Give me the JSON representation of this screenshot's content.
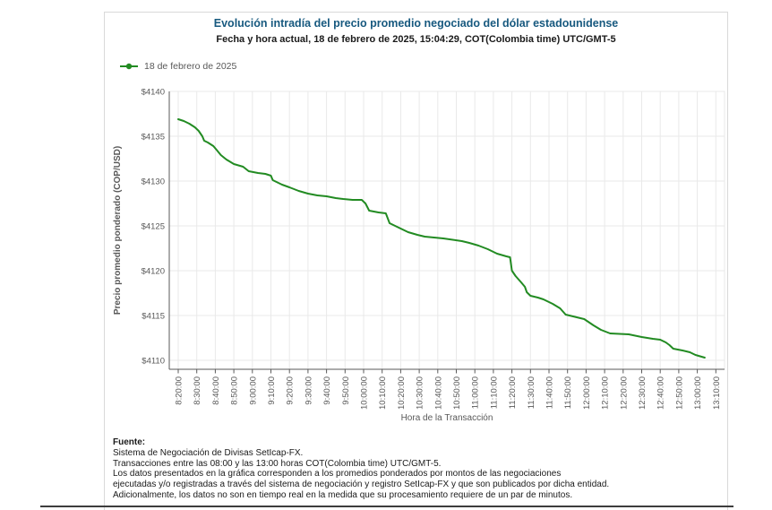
{
  "header": {
    "title": "Evolución intradía del precio promedio negociado del dólar estadounidense",
    "subtitle": "Fecha y hora actual, 18 de febrero de 2025, 15:04:29, COT(Colombia time) UTC/GMT-5"
  },
  "legend": {
    "label": "18 de febrero de 2025"
  },
  "chart_data": {
    "type": "line",
    "title": "Evolución intradía del precio promedio negociado del dólar estadounidense",
    "xlabel": "Hora de la Transacción",
    "ylabel": "Precio promedio ponderado (COP/USD)",
    "ylim": [
      4109,
      4140
    ],
    "grid": true,
    "legend_position": "top-left",
    "x_ticks": [
      "8:20:00",
      "8:30:00",
      "8:40:00",
      "8:50:00",
      "9:00:00",
      "9:10:00",
      "9:20:00",
      "9:30:00",
      "9:40:00",
      "9:50:00",
      "10:00:00",
      "10:10:00",
      "10:20:00",
      "10:30:00",
      "10:40:00",
      "10:50:00",
      "11:00:00",
      "11:10:00",
      "11:20:00",
      "11:30:00",
      "11:40:00",
      "11:50:00",
      "12:00:00",
      "12:10:00",
      "12:20:00",
      "12:30:00",
      "12:40:00",
      "12:50:00",
      "13:00:00",
      "13:10:00"
    ],
    "y_ticks": [
      {
        "value": 4110,
        "label": "$4110"
      },
      {
        "value": 4115,
        "label": "$4115"
      },
      {
        "value": 4120,
        "label": "$4120"
      },
      {
        "value": 4125,
        "label": "$4125"
      },
      {
        "value": 4130,
        "label": "$4130"
      },
      {
        "value": 4135,
        "label": "$4135"
      },
      {
        "value": 4140,
        "label": "$4140"
      }
    ],
    "x_start_time": "8:20:00",
    "x_minutes_per_tick": 10,
    "series": [
      {
        "name": "18 de febrero de 2025",
        "color": "#228B22",
        "points_format": "[minutes_after_8:20, COP_per_USD]",
        "points": [
          [
            0,
            4136.9
          ],
          [
            3,
            4136.7
          ],
          [
            6,
            4136.4
          ],
          [
            9,
            4136.0
          ],
          [
            11,
            4135.6
          ],
          [
            13,
            4135.0
          ],
          [
            14,
            4134.5
          ],
          [
            16,
            4134.3
          ],
          [
            19,
            4133.9
          ],
          [
            21,
            4133.4
          ],
          [
            23,
            4132.9
          ],
          [
            26,
            4132.4
          ],
          [
            30,
            4131.9
          ],
          [
            35,
            4131.6
          ],
          [
            38,
            4131.1
          ],
          [
            43,
            4130.9
          ],
          [
            47,
            4130.8
          ],
          [
            50,
            4130.6
          ],
          [
            51,
            4130.1
          ],
          [
            56,
            4129.6
          ],
          [
            60,
            4129.3
          ],
          [
            65,
            4128.9
          ],
          [
            70,
            4128.6
          ],
          [
            75,
            4128.4
          ],
          [
            80,
            4128.3
          ],
          [
            85,
            4128.1
          ],
          [
            89,
            4128.0
          ],
          [
            94,
            4127.9
          ],
          [
            99,
            4127.9
          ],
          [
            101,
            4127.5
          ],
          [
            103,
            4126.7
          ],
          [
            108,
            4126.5
          ],
          [
            112,
            4126.4
          ],
          [
            114,
            4125.3
          ],
          [
            119,
            4124.8
          ],
          [
            124,
            4124.3
          ],
          [
            129,
            4124.0
          ],
          [
            133,
            4123.8
          ],
          [
            143,
            4123.6
          ],
          [
            153,
            4123.3
          ],
          [
            157,
            4123.1
          ],
          [
            162,
            4122.8
          ],
          [
            167,
            4122.4
          ],
          [
            172,
            4121.9
          ],
          [
            177,
            4121.6
          ],
          [
            179,
            4121.5
          ],
          [
            180,
            4120.0
          ],
          [
            182,
            4119.4
          ],
          [
            185,
            4118.7
          ],
          [
            187,
            4118.2
          ],
          [
            188,
            4117.6
          ],
          [
            190,
            4117.2
          ],
          [
            194,
            4117.0
          ],
          [
            197,
            4116.8
          ],
          [
            202,
            4116.3
          ],
          [
            206,
            4115.8
          ],
          [
            209,
            4115.1
          ],
          [
            213,
            4114.9
          ],
          [
            219,
            4114.6
          ],
          [
            224,
            4113.9
          ],
          [
            228,
            4113.4
          ],
          [
            233,
            4113.0
          ],
          [
            243,
            4112.9
          ],
          [
            250,
            4112.6
          ],
          [
            256,
            4112.4
          ],
          [
            260,
            4112.3
          ],
          [
            263,
            4112.0
          ],
          [
            265,
            4111.7
          ],
          [
            267,
            4111.3
          ],
          [
            272,
            4111.1
          ],
          [
            276,
            4110.9
          ],
          [
            279,
            4110.6
          ],
          [
            284,
            4110.3
          ]
        ]
      }
    ]
  },
  "footer": {
    "source_label": "Fuente:",
    "lines": [
      "Sistema de Negociación de Divisas SetIcap-FX.",
      "Transacciones entre las 08:00 y las 13:00 horas COT(Colombia time) UTC/GMT-5.",
      "Los datos presentados en la gráfica corresponden a los promedios ponderados por montos de las negociaciones",
      "ejecutadas y/o registradas a través del sistema de negociación y registro SetIcap-FX y que son publicados por dicha entidad.",
      "Adicionalmente, los datos no son en tiempo real en la medida que su procesamiento requiere de un par de minutos."
    ]
  },
  "colors": {
    "title": "#17597f",
    "line": "#228B22",
    "axis_text": "#595959",
    "grid": "#e9e9e9",
    "axis": "#5a5a5a"
  }
}
